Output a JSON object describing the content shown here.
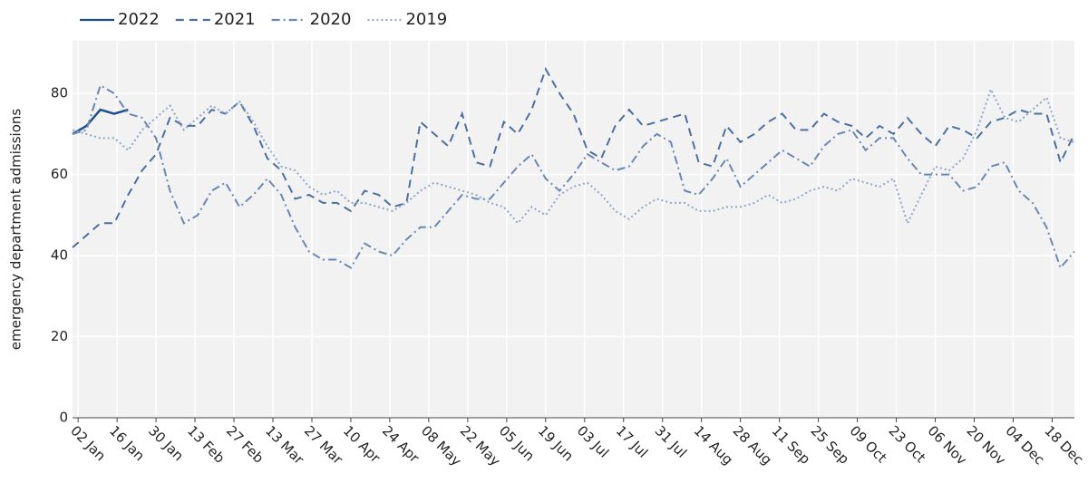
{
  "chart_data": {
    "type": "line",
    "ylabel": "emergency department admissions",
    "x": [
      0,
      5,
      10,
      15,
      20,
      25,
      30,
      35,
      40,
      45,
      50,
      55,
      60,
      65,
      70,
      75,
      80,
      85,
      90,
      95,
      100,
      105,
      110,
      115,
      120,
      125,
      130,
      135,
      140,
      145,
      150,
      155,
      160,
      165,
      170,
      175,
      180,
      185,
      190,
      195,
      200,
      205,
      210,
      215,
      220,
      225,
      230,
      235,
      240,
      245,
      250,
      255,
      260,
      265,
      270,
      275,
      280,
      285,
      290,
      295,
      300,
      305,
      310,
      315,
      320,
      325,
      330,
      335,
      340,
      345,
      350,
      355,
      360
    ],
    "xlim": [
      0,
      360
    ],
    "xticks": [
      {
        "value": 2,
        "label": "02 Jan"
      },
      {
        "value": 16,
        "label": "16 Jan"
      },
      {
        "value": 30,
        "label": "30 Jan"
      },
      {
        "value": 44,
        "label": "13 Feb"
      },
      {
        "value": 58,
        "label": "27 Feb"
      },
      {
        "value": 72,
        "label": "13 Mar"
      },
      {
        "value": 86,
        "label": "27 Mar"
      },
      {
        "value": 100,
        "label": "10 Apr"
      },
      {
        "value": 114,
        "label": "24 Apr"
      },
      {
        "value": 128,
        "label": "08 May"
      },
      {
        "value": 142,
        "label": "22 May"
      },
      {
        "value": 156,
        "label": "05 Jun"
      },
      {
        "value": 170,
        "label": "19 Jun"
      },
      {
        "value": 184,
        "label": "03 Jul"
      },
      {
        "value": 198,
        "label": "17 Jul"
      },
      {
        "value": 212,
        "label": "31 Jul"
      },
      {
        "value": 226,
        "label": "14 Aug"
      },
      {
        "value": 240,
        "label": "28 Aug"
      },
      {
        "value": 254,
        "label": "11 Sep"
      },
      {
        "value": 268,
        "label": "25 Sep"
      },
      {
        "value": 282,
        "label": "09 Oct"
      },
      {
        "value": 296,
        "label": "23 Oct"
      },
      {
        "value": 310,
        "label": "06 Nov"
      },
      {
        "value": 324,
        "label": "20 Nov"
      },
      {
        "value": 338,
        "label": "04 Dec"
      },
      {
        "value": 352,
        "label": "18 Dec"
      }
    ],
    "ylim": [
      0,
      93
    ],
    "yticks": [
      0,
      20,
      40,
      60,
      80
    ],
    "grid": true,
    "series": [
      {
        "name": "2022",
        "color": "#1f4e8c",
        "dash": "solid",
        "values": [
          70,
          72,
          76,
          75,
          76,
          null,
          null,
          null,
          null,
          null,
          null,
          null,
          null,
          null,
          null,
          null,
          null,
          null,
          null,
          null,
          null,
          null,
          null,
          null,
          null,
          null,
          null,
          null,
          null,
          null,
          null,
          null,
          null,
          null,
          null,
          null,
          null,
          null,
          null,
          null,
          null,
          null,
          null,
          null,
          null,
          null,
          null,
          null,
          null,
          null,
          null,
          null,
          null,
          null,
          null,
          null,
          null,
          null,
          null,
          null,
          null,
          null,
          null,
          null,
          null,
          null,
          null,
          null,
          null,
          null,
          null,
          null,
          null
        ]
      },
      {
        "name": "2021",
        "color": "#4d6f9e",
        "dash": "dashed",
        "values": [
          42,
          45,
          48,
          48,
          55,
          61,
          65,
          74,
          72,
          72,
          76,
          75,
          78,
          72,
          64,
          61,
          54,
          55,
          53,
          53,
          51,
          56,
          55,
          52,
          53,
          73,
          70,
          67,
          75,
          63,
          62,
          73,
          70,
          76,
          86,
          80,
          75,
          66,
          64,
          72,
          76,
          72,
          73,
          74,
          75,
          63,
          62,
          72,
          68,
          70,
          73,
          75,
          71,
          71,
          75,
          73,
          72,
          69,
          72,
          70,
          74,
          70,
          67,
          72,
          71,
          69,
          73,
          74,
          76,
          75,
          75,
          63,
          70
        ]
      },
      {
        "name": "2020",
        "color": "#6a88b2",
        "dash": "dashdot",
        "values": [
          70,
          71,
          82,
          80,
          75,
          74,
          69,
          56,
          48,
          50,
          56,
          58,
          52,
          55,
          59,
          55,
          47,
          41,
          39,
          39,
          37,
          43,
          41,
          40,
          44,
          47,
          47,
          51,
          55,
          54,
          54,
          58,
          62,
          65,
          59,
          56,
          60,
          65,
          63,
          61,
          62,
          67,
          70,
          68,
          56,
          55,
          59,
          64,
          57,
          60,
          63,
          66,
          64,
          62,
          67,
          70,
          71,
          66,
          69,
          69,
          64,
          60,
          60,
          60,
          56,
          57,
          62,
          63,
          56,
          53,
          47,
          37,
          41
        ]
      },
      {
        "name": "2019",
        "color": "#8ea6c8",
        "dash": "dotted",
        "values": [
          71,
          70,
          69,
          69,
          66,
          71,
          74,
          77,
          71,
          74,
          77,
          75,
          78,
          73,
          67,
          62,
          61,
          57,
          55,
          56,
          53,
          53,
          52,
          51,
          53,
          56,
          58,
          57,
          56,
          55,
          53,
          52,
          48,
          52,
          50,
          55,
          57,
          58,
          55,
          51,
          49,
          52,
          54,
          53,
          53,
          51,
          51,
          52,
          52,
          53,
          55,
          53,
          54,
          56,
          57,
          56,
          59,
          58,
          57,
          59,
          48,
          55,
          62,
          61,
          64,
          71,
          81,
          74,
          73,
          76,
          79,
          69,
          68
        ]
      }
    ]
  }
}
